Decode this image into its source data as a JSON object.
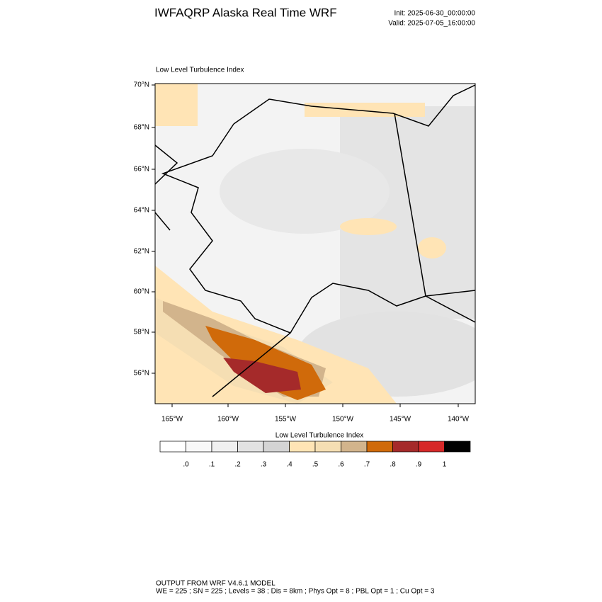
{
  "header": {
    "title": "IWFAQRP Alaska Real Time WRF",
    "init": "Init: 2025-06-30_00:00:00",
    "valid": "Valid: 2025-07-05_16:00:00"
  },
  "map": {
    "subtitle": "Low Level Turbulence Index",
    "lat_labels": [
      "70°N",
      "68°N",
      "66°N",
      "64°N",
      "62°N",
      "60°N",
      "58°N",
      "56°N"
    ],
    "lon_labels": [
      "165°W",
      "160°W",
      "155°W",
      "150°W",
      "145°W",
      "140°W"
    ]
  },
  "colorbar": {
    "title": "Low Level Turbulence Index",
    "colors": [
      "#ffffff",
      "#f8f8f8",
      "#f0f0f0",
      "#e2e2e2",
      "#d4d4d4",
      "#ffe4b5",
      "#f5deb3",
      "#d2b48c",
      "#d06a0a",
      "#a52a2a",
      "#d62828",
      "#000000"
    ],
    "labels": [
      ".0",
      ".1",
      ".2",
      ".3",
      ".4",
      ".5",
      ".6",
      ".7",
      ".8",
      ".9",
      "1"
    ]
  },
  "footer": {
    "lines": [
      "OUTPUT FROM WRF V4.6.1 MODEL",
      "WE = 225 ; SN = 225 ; Levels = 38 ; Dis = 8km ; Phys Opt = 8 ; PBL Opt = 1 ; Cu Opt = 3"
    ]
  }
}
